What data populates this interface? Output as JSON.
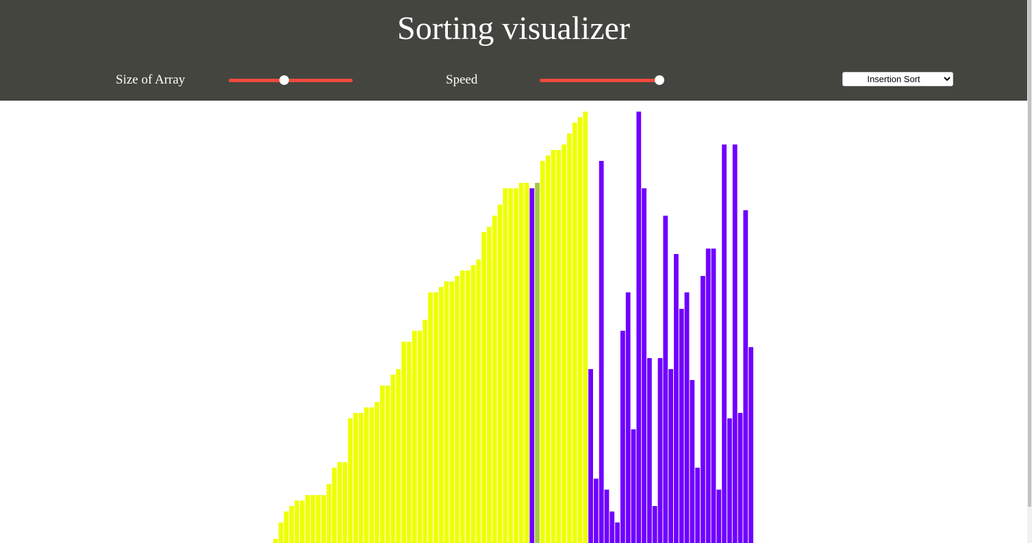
{
  "header": {
    "title": "Sorting visualizer"
  },
  "controls": {
    "size_label": "Size of Array",
    "speed_label": "Speed",
    "algorithm": "Insertion Sort"
  },
  "array": {
    "values": [
      6,
      30,
      46,
      54,
      62,
      62,
      70,
      70,
      70,
      70,
      86,
      110,
      118,
      118,
      182,
      190,
      190,
      198,
      198,
      206,
      230,
      230,
      246,
      254,
      294,
      294,
      310,
      310,
      326,
      366,
      366,
      374,
      382,
      382,
      390,
      398,
      398,
      406,
      414,
      454,
      462,
      478,
      494,
      518,
      518,
      518,
      526,
      526,
      518,
      526,
      558,
      566,
      574,
      574,
      582,
      598,
      614,
      622,
      630,
      254,
      94,
      558,
      78,
      46,
      30,
      310,
      366,
      166,
      630,
      518,
      270,
      54,
      270,
      478,
      254,
      422,
      342,
      366,
      238,
      110,
      390,
      430,
      430,
      78,
      582,
      182,
      582,
      190,
      486,
      286
    ],
    "colors": [
      "#eeff00",
      "#eeff00",
      "#eeff00",
      "#eeff00",
      "#eeff00",
      "#eeff00",
      "#eeff00",
      "#eeff00",
      "#eeff00",
      "#eeff00",
      "#eeff00",
      "#eeff00",
      "#eeff00",
      "#eeff00",
      "#eeff00",
      "#eeff00",
      "#eeff00",
      "#eeff00",
      "#eeff00",
      "#eeff00",
      "#eeff00",
      "#eeff00",
      "#eeff00",
      "#eeff00",
      "#eeff00",
      "#eeff00",
      "#eeff00",
      "#eeff00",
      "#eeff00",
      "#eeff00",
      "#eeff00",
      "#eeff00",
      "#eeff00",
      "#eeff00",
      "#eeff00",
      "#eeff00",
      "#eeff00",
      "#eeff00",
      "#eeff00",
      "#eeff00",
      "#eeff00",
      "#eeff00",
      "#eeff00",
      "#eeff00",
      "#eeff00",
      "#eeff00",
      "#eeff00",
      "#eeff00",
      "#7000ff",
      "#a8c83a",
      "#eeff00",
      "#eeff00",
      "#eeff00",
      "#eeff00",
      "#eeff00",
      "#eeff00",
      "#eeff00",
      "#eeff00",
      "#eeff00",
      "#7000ff",
      "#7000ff",
      "#7000ff",
      "#7000ff",
      "#7000ff",
      "#7000ff",
      "#7000ff",
      "#7000ff",
      "#7000ff",
      "#7000ff",
      "#7000ff",
      "#7000ff",
      "#7000ff",
      "#7000ff",
      "#7000ff",
      "#7000ff",
      "#7000ff",
      "#7000ff",
      "#7000ff",
      "#7000ff",
      "#7000ff",
      "#7000ff",
      "#7000ff",
      "#7000ff",
      "#7000ff",
      "#7000ff",
      "#7000ff",
      "#7000ff",
      "#7000ff",
      "#7000ff",
      "#7000ff"
    ]
  }
}
